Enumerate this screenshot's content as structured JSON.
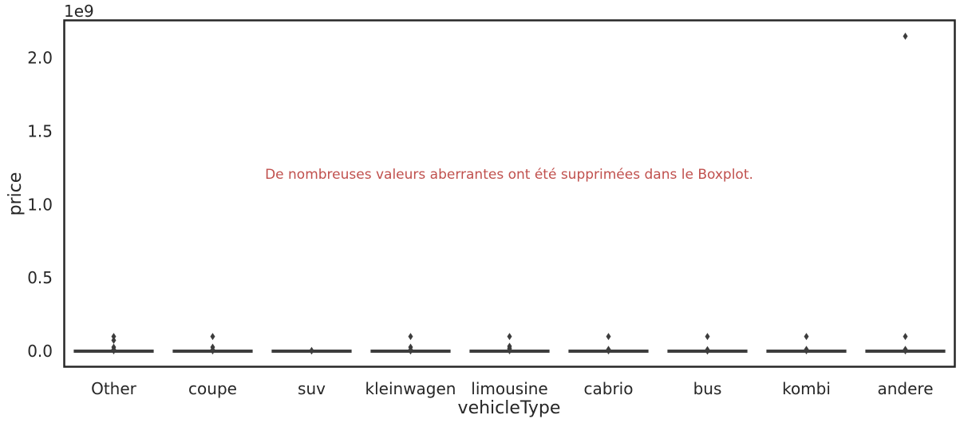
{
  "chart_data": {
    "type": "box",
    "xlabel": "vehicleType",
    "ylabel": "price",
    "offset_label": "1e9",
    "annotation": "De nombreuses valeurs aberrantes ont été supprimées dans le Boxplot.",
    "annotation_color": "#c0504d",
    "ylim": [
      -100000000,
      2250000000
    ],
    "yticks": [
      0,
      500000000,
      1000000000,
      1500000000,
      2000000000
    ],
    "ytick_labels": [
      "0.0",
      "0.5",
      "1.0",
      "1.5",
      "2.0"
    ],
    "categories": [
      "Other",
      "coupe",
      "suv",
      "kleinwagen",
      "limousine",
      "cabrio",
      "bus",
      "kombi",
      "andere"
    ],
    "boxes": [
      {
        "category": "Other",
        "median": 0,
        "q1": 0,
        "q3": 0,
        "whisker_low": 0,
        "whisker_high": 0,
        "outliers": [
          99999999,
          74185296,
          27322222,
          12345678,
          3000000
        ]
      },
      {
        "category": "coupe",
        "median": 0,
        "q1": 0,
        "q3": 0,
        "whisker_low": 0,
        "whisker_high": 0,
        "outliers": [
          99999999,
          27322222,
          10000000,
          2000000
        ]
      },
      {
        "category": "suv",
        "median": 0,
        "q1": 0,
        "q3": 0,
        "whisker_low": 0,
        "whisker_high": 0,
        "outliers": [
          5000000,
          1500000
        ]
      },
      {
        "category": "kleinwagen",
        "median": 0,
        "q1": 0,
        "q3": 0,
        "whisker_low": 0,
        "whisker_high": 0,
        "outliers": [
          99999999,
          27322222,
          10000000,
          1500000
        ]
      },
      {
        "category": "limousine",
        "median": 0,
        "q1": 0,
        "q3": 0,
        "whisker_low": 0,
        "whisker_high": 0,
        "outliers": [
          99999999,
          33333333,
          20000000,
          11111111,
          3000000
        ]
      },
      {
        "category": "cabrio",
        "median": 0,
        "q1": 0,
        "q3": 0,
        "whisker_low": 0,
        "whisker_high": 0,
        "outliers": [
          99999999,
          12345678,
          2000000
        ]
      },
      {
        "category": "bus",
        "median": 0,
        "q1": 0,
        "q3": 0,
        "whisker_low": 0,
        "whisker_high": 0,
        "outliers": [
          99999999,
          10000000,
          1000000
        ]
      },
      {
        "category": "kombi",
        "median": 0,
        "q1": 0,
        "q3": 0,
        "whisker_low": 0,
        "whisker_high": 0,
        "outliers": [
          99999999,
          12345678,
          3000000
        ]
      },
      {
        "category": "andere",
        "median": 0,
        "q1": 0,
        "q3": 0,
        "whisker_low": 0,
        "whisker_high": 0,
        "outliers": [
          2147483647,
          99999999,
          12345678,
          2000000
        ]
      }
    ],
    "grid": false,
    "box_color": "#3d3d3d"
  }
}
